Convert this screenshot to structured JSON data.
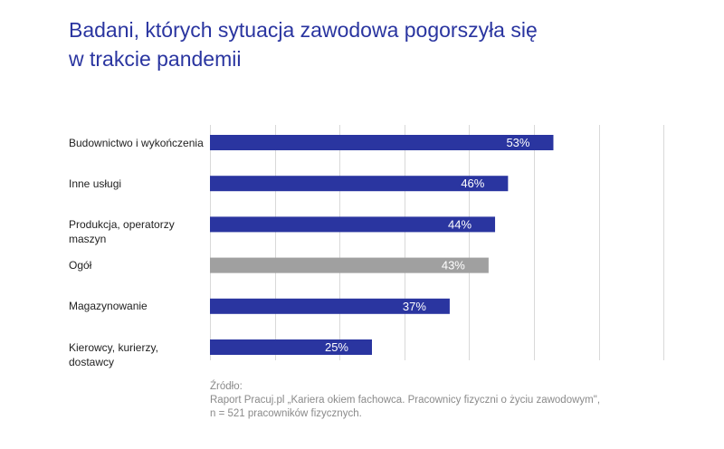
{
  "title": {
    "line1": "Badani, których sytuacja zawodowa pogorszyła się",
    "line2": "w trakcie pandemii"
  },
  "colors": {
    "primary": "#2a35a0",
    "highlight": "#a0a0a0",
    "grid": "#d9d9d9"
  },
  "chart_data": {
    "type": "bar",
    "orientation": "horizontal",
    "title": "Badani, których sytuacja zawodowa pogorszyła się w trakcie pandemii",
    "xlim": [
      0,
      100
    ],
    "grid": true,
    "categories": [
      "Budownictwo i wykończenia",
      "Inne usługi",
      "Produkcja, operatorzy maszyn",
      "Ogół",
      "Magazynowanie",
      "Kierowcy, kurierzy, dostawcy"
    ],
    "values": [
      53,
      46,
      44,
      43,
      37,
      25
    ],
    "value_labels": [
      "53%",
      "46%",
      "44%",
      "43%",
      "37%",
      "25%"
    ],
    "highlight_index": 3
  },
  "label_lines": [
    [
      "Budownictwo i wykończenia"
    ],
    [
      "Inne usługi"
    ],
    [
      "Produkcja, operatorzy",
      "maszyn"
    ],
    [
      "Ogół"
    ],
    [
      "Magazynowanie"
    ],
    [
      "Kierowcy, kurierzy,",
      "dostawcy"
    ]
  ],
  "source": {
    "heading": "Źródło:",
    "line1": "Raport Pracuj.pl „Kariera okiem fachowca. Pracownicy fizyczni o życiu zawodowym\",",
    "line2": "n = 521 pracowników fizycznych."
  }
}
